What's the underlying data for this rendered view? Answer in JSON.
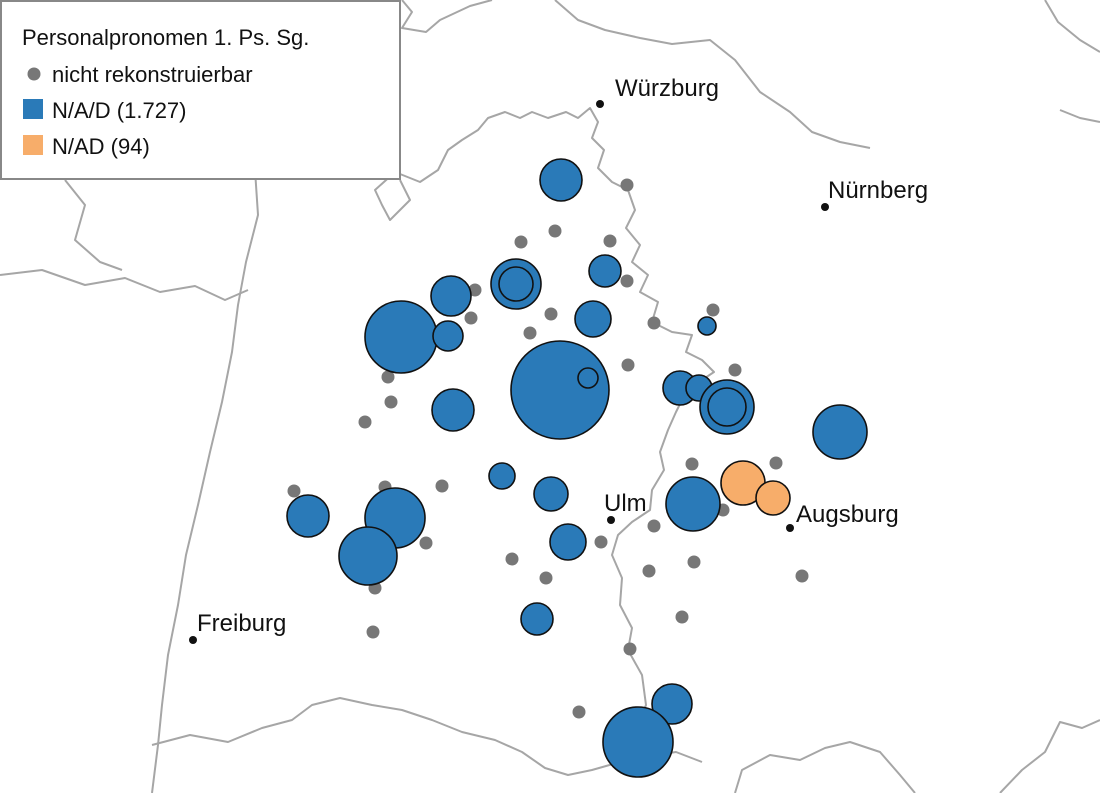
{
  "legend": {
    "title": "Personalpronomen 1. Ps. Sg.",
    "items": [
      {
        "label": "nicht rekonstruierbar",
        "symbol": "circle",
        "color": "#777777"
      },
      {
        "label": "N/A/D (1.727)",
        "symbol": "square",
        "color": "#2a7ab8"
      },
      {
        "label": "N/AD (94)",
        "symbol": "square",
        "color": "#f7ad6a"
      }
    ]
  },
  "cities": [
    {
      "name": "Würzburg"
    },
    {
      "name": "Nürnberg"
    },
    {
      "name": "Ulm"
    },
    {
      "name": "Augsburg"
    },
    {
      "name": "Freiburg"
    }
  ],
  "colors": {
    "blue": "#2a7ab8",
    "orange": "#f7ad6a",
    "grey_dot": "#777777",
    "border": "#a6a6a6",
    "point_outline": "#111111"
  }
}
